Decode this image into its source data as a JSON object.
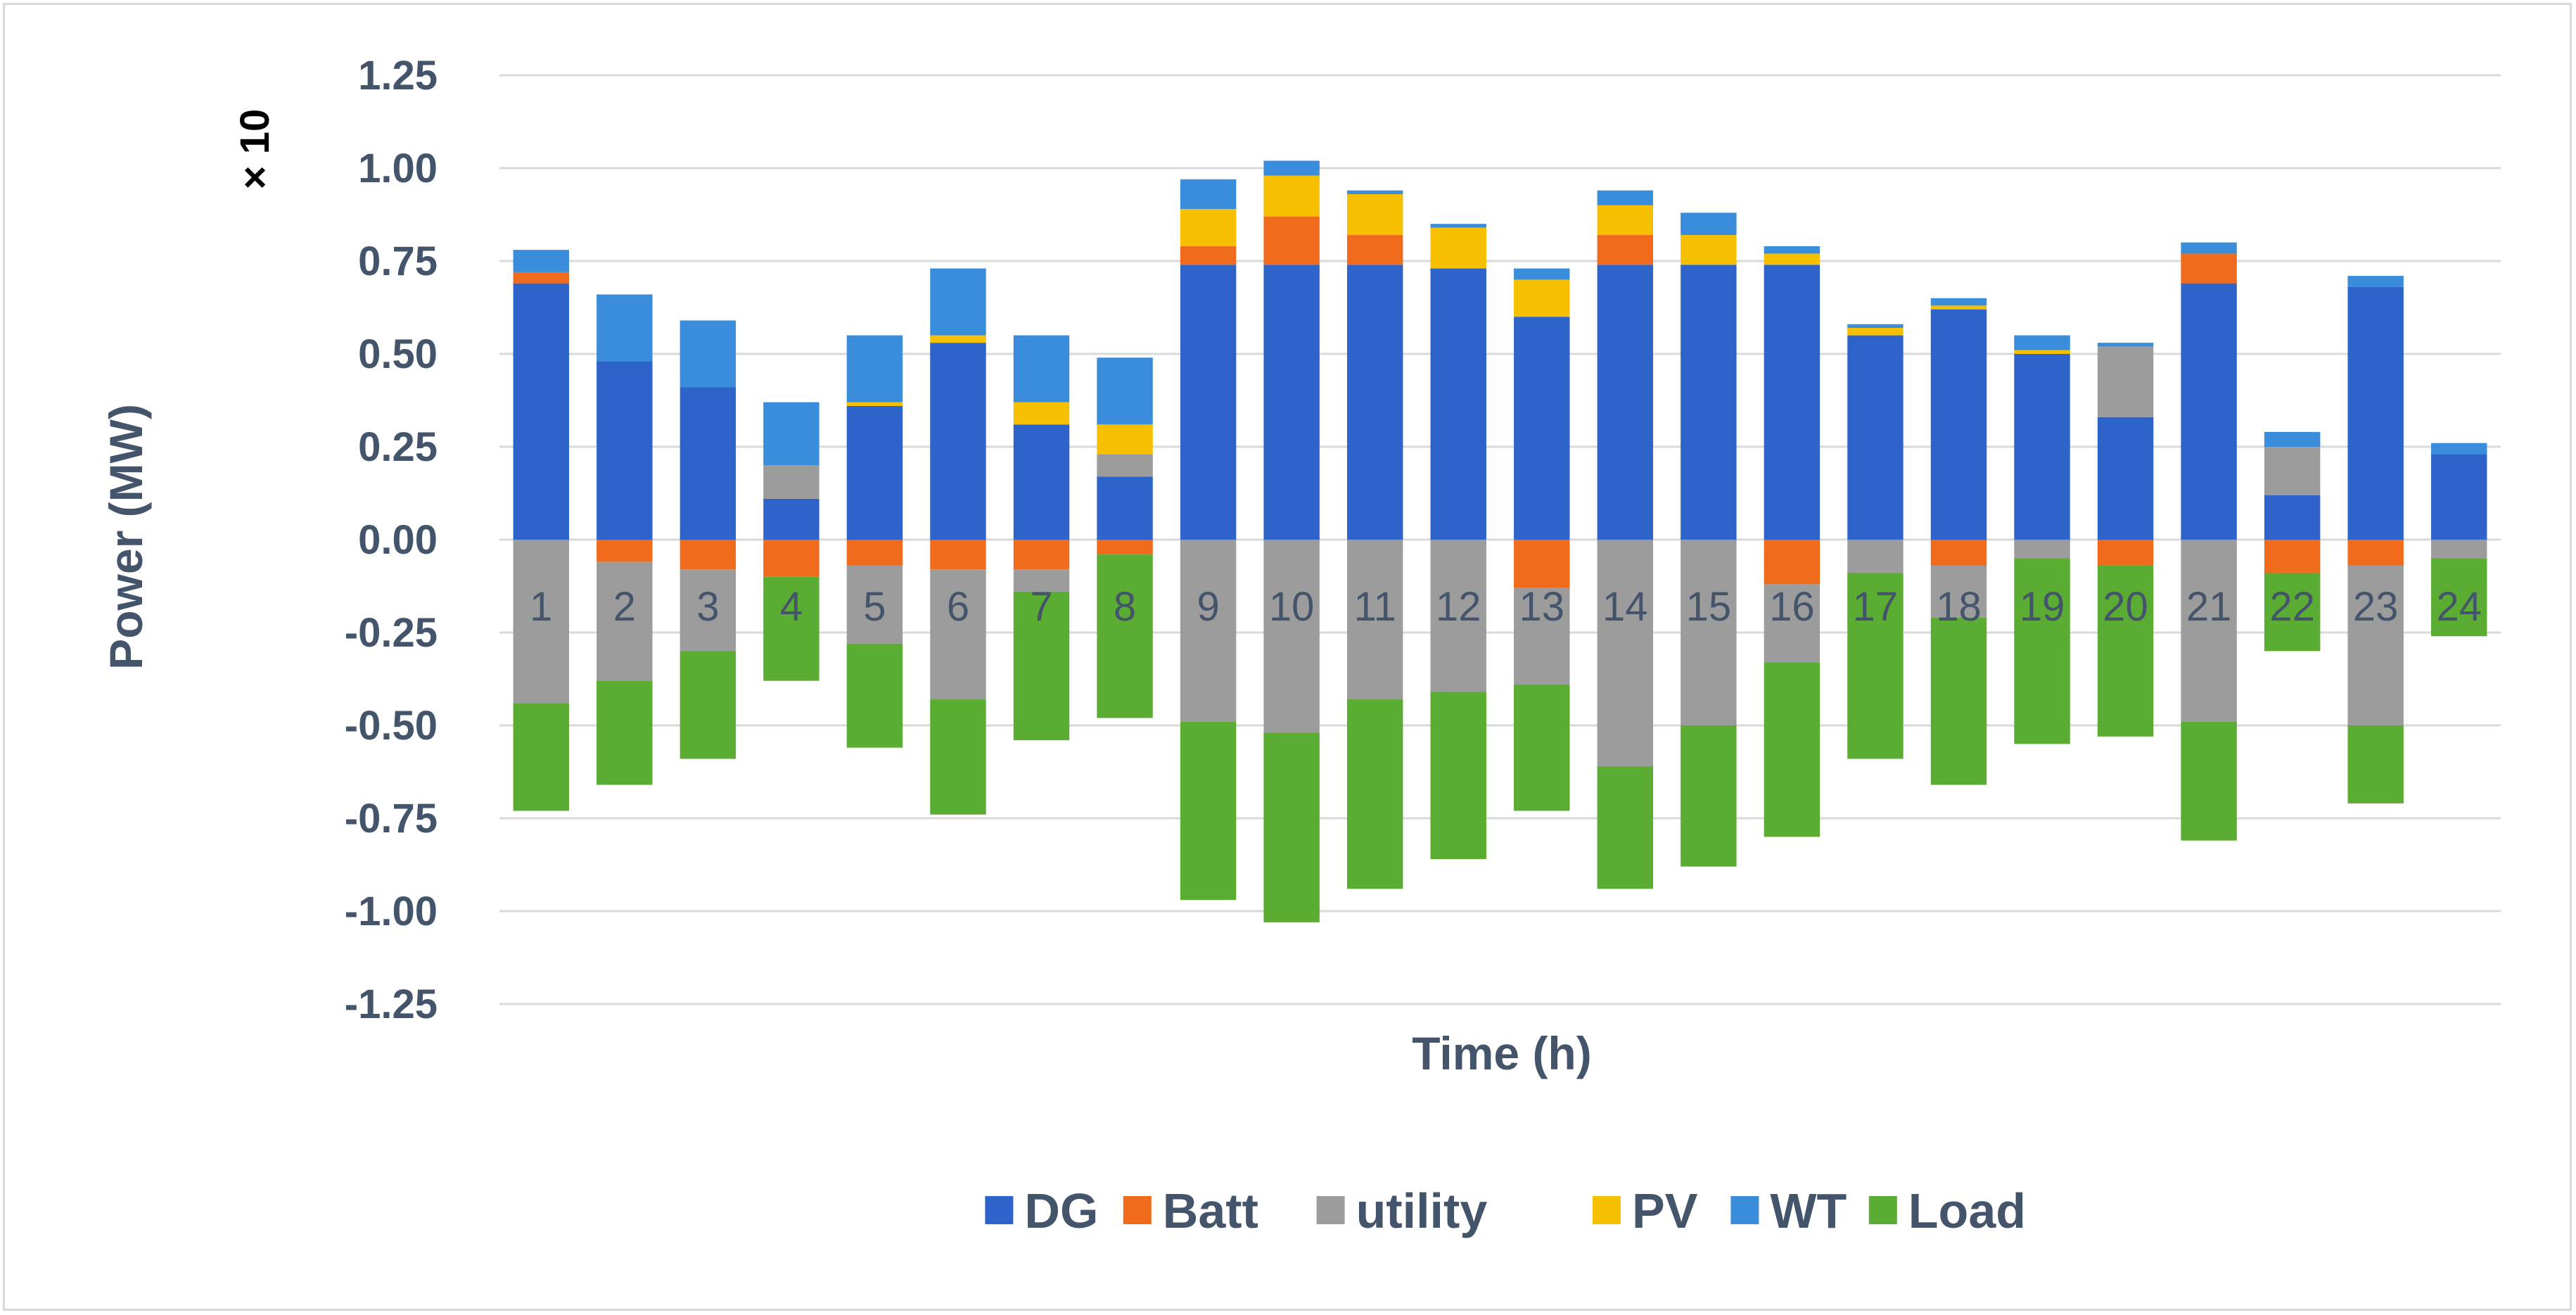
{
  "chart_data": {
    "type": "bar",
    "stacked": true,
    "title": "",
    "xlabel": "Time (h)",
    "ylabel": "Power (MW)",
    "y_multiplier": "× 10",
    "ylim": [
      -1.25,
      1.25
    ],
    "yticks": [
      "1.25",
      "1.00",
      "0.75",
      "0.50",
      "0.25",
      "0.00",
      "-0.25",
      "-0.50",
      "-0.75",
      "-1.00",
      "-1.25"
    ],
    "grid": true,
    "legend_position": "bottom",
    "categories": [
      "1",
      "2",
      "3",
      "4",
      "5",
      "6",
      "7",
      "8",
      "9",
      "10",
      "11",
      "12",
      "13",
      "14",
      "15",
      "16",
      "17",
      "18",
      "19",
      "20",
      "21",
      "22",
      "23",
      "24"
    ],
    "series": [
      {
        "name": "DG",
        "color": "#2e63c9",
        "values": [
          0.69,
          0.48,
          0.41,
          0.11,
          0.36,
          0.53,
          0.31,
          0.17,
          0.74,
          0.74,
          0.74,
          0.73,
          0.6,
          0.74,
          0.74,
          0.74,
          0.55,
          0.62,
          0.5,
          0.33,
          0.69,
          0.12,
          0.68,
          0.23
        ]
      },
      {
        "name": "Batt",
        "color": "#f06c1c",
        "values": [
          0.03,
          -0.06,
          -0.08,
          -0.1,
          -0.07,
          -0.08,
          -0.08,
          -0.04,
          0.05,
          0.13,
          0.08,
          0,
          -0.13,
          0.08,
          0,
          -0.12,
          0,
          -0.07,
          0,
          -0.07,
          0.08,
          -0.09,
          -0.07,
          0
        ]
      },
      {
        "name": "utility",
        "color": "#9c9c9c",
        "values": [
          -0.44,
          -0.32,
          -0.22,
          0.09,
          -0.21,
          -0.35,
          -0.06,
          0.06,
          -0.49,
          -0.52,
          -0.43,
          -0.41,
          -0.26,
          -0.61,
          -0.5,
          -0.21,
          -0.09,
          -0.14,
          -0.05,
          0.19,
          -0.49,
          0.13,
          -0.43,
          -0.05
        ]
      },
      {
        "name": "PV",
        "color": "#f6c000",
        "values": [
          0,
          0,
          0,
          0,
          0.01,
          0.02,
          0.06,
          0.08,
          0.1,
          0.11,
          0.11,
          0.11,
          0.1,
          0.08,
          0.08,
          0.03,
          0.02,
          0.01,
          0.01,
          0,
          0,
          0,
          0,
          0
        ]
      },
      {
        "name": "WT",
        "color": "#3a8ddb",
        "values": [
          0.06,
          0.18,
          0.18,
          0.17,
          0.18,
          0.18,
          0.18,
          0.18,
          0.08,
          0.04,
          0.01,
          0.01,
          0.03,
          0.04,
          0.06,
          0.02,
          0.01,
          0.02,
          0.04,
          0.01,
          0.03,
          0.04,
          0.03,
          0.03
        ]
      },
      {
        "name": "Load",
        "color": "#5bac33",
        "values": [
          -0.29,
          -0.28,
          -0.29,
          -0.28,
          -0.28,
          -0.31,
          -0.4,
          -0.44,
          -0.48,
          -0.51,
          -0.51,
          -0.45,
          -0.34,
          -0.33,
          -0.38,
          -0.47,
          -0.5,
          -0.45,
          -0.5,
          -0.46,
          -0.32,
          -0.21,
          -0.21,
          -0.21
        ]
      }
    ]
  }
}
